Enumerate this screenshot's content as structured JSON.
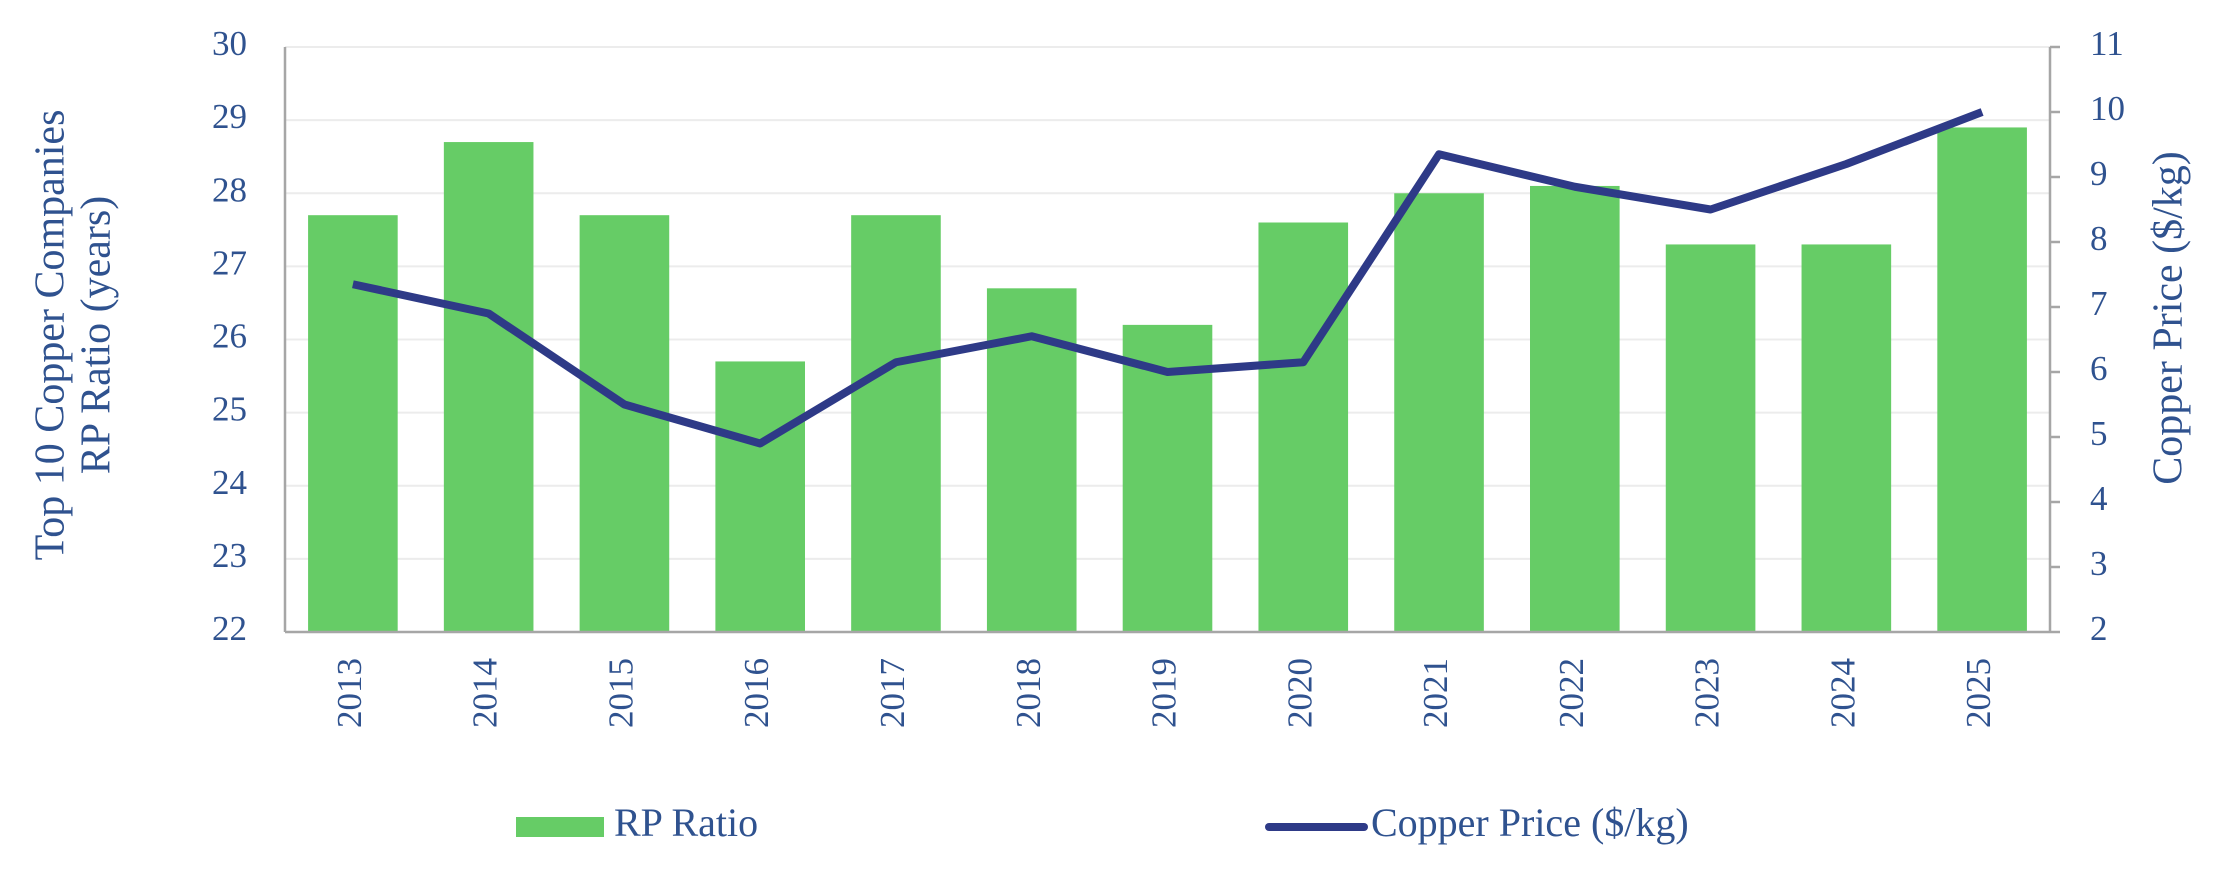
{
  "chart_data": {
    "type": "bar",
    "y_label": [
      "Top 10 Copper Companies",
      "RP Ratio (years)"
    ],
    "y2_label": "Copper Price ($/kg)",
    "categories": [
      "2013",
      "2014",
      "2015",
      "2016",
      "2017",
      "2018",
      "2019",
      "2020",
      "2021",
      "2022",
      "2023",
      "2024",
      "2025"
    ],
    "series": [
      {
        "name": "RP Ratio",
        "type": "bar",
        "color": "#66cc66",
        "values": [
          27.7,
          28.7,
          27.7,
          25.7,
          27.7,
          26.7,
          26.2,
          27.6,
          28.0,
          28.1,
          27.3,
          27.3,
          28.9
        ]
      },
      {
        "name": "Copper Price ($/kg)",
        "type": "line",
        "axis": "y2",
        "color": "#2e3a87",
        "values": [
          7.35,
          6.9,
          5.5,
          4.9,
          6.15,
          6.55,
          6.0,
          6.15,
          9.35,
          8.85,
          8.5,
          9.2,
          10.0
        ]
      }
    ],
    "ylim": [
      22,
      30
    ],
    "yticks": [
      22,
      23,
      24,
      25,
      26,
      27,
      28,
      29,
      30
    ],
    "y2lim": [
      2,
      11
    ],
    "y2ticks": [
      2,
      3,
      4,
      5,
      6,
      7,
      8,
      9,
      10,
      11
    ],
    "grid": true,
    "legend": "bottom"
  }
}
